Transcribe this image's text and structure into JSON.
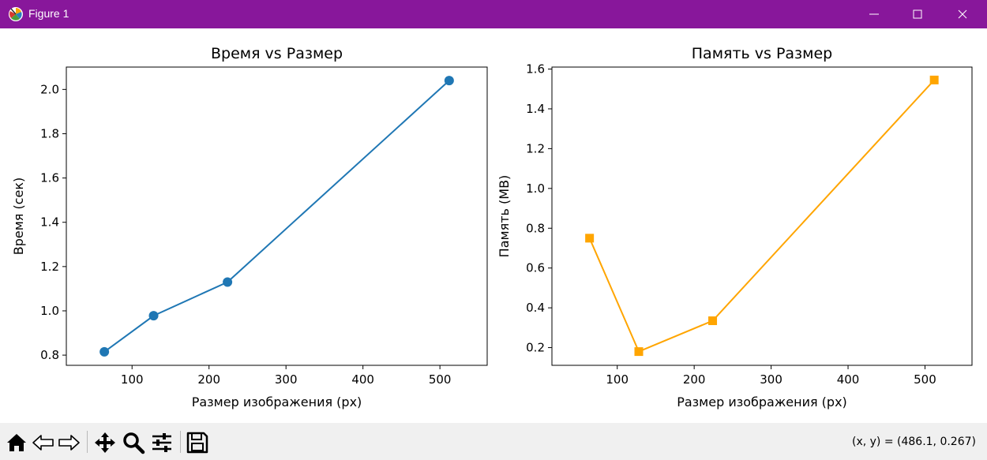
{
  "window": {
    "title": "Figure 1",
    "titlebar_color": "#88179b",
    "icons": [
      "matplotlib-icon",
      "minimize-icon",
      "maximize-icon",
      "close-icon"
    ]
  },
  "toolbar": {
    "tools": [
      "home-icon",
      "back-arrow-icon",
      "forward-arrow-icon",
      "pan-icon",
      "zoom-icon",
      "configure-subplots-icon",
      "save-icon"
    ],
    "coords": "(x, y) = (486.1, 0.267)"
  },
  "chart_data": [
    {
      "type": "line",
      "title": "Время vs Размер",
      "xlabel": "Размер изображения (px)",
      "ylabel": "Время (сек)",
      "x": [
        64,
        128,
        224,
        512
      ],
      "series": [
        {
          "values": [
            0.815,
            0.978,
            1.13,
            2.04
          ],
          "color": "#1f77b4",
          "marker": "circle"
        }
      ],
      "xlim": [
        14.6,
        561.4
      ],
      "ylim": [
        0.754,
        2.101
      ],
      "xticks": [
        100,
        200,
        300,
        400,
        500
      ],
      "xtick_labels": [
        "100",
        "200",
        "300",
        "400",
        "500"
      ],
      "yticks": [
        0.8,
        1.0,
        1.2,
        1.4,
        1.6,
        1.8,
        2.0
      ],
      "ytick_labels": [
        "0.8",
        "1.0",
        "1.2",
        "1.4",
        "1.6",
        "1.8",
        "2.0"
      ],
      "grid": false,
      "legend": "none"
    },
    {
      "type": "line",
      "title": "Память vs Размер",
      "xlabel": "Размер изображения (px)",
      "ylabel": "Память (MB)",
      "x": [
        64,
        128,
        224,
        512
      ],
      "series": [
        {
          "values": [
            0.75,
            0.18,
            0.335,
            1.545
          ],
          "color": "#ffa500",
          "marker": "square"
        }
      ],
      "xlim": [
        15.1,
        561.1
      ],
      "ylim": [
        0.111,
        1.61
      ],
      "xticks": [
        100,
        200,
        300,
        400,
        500
      ],
      "xtick_labels": [
        "100",
        "200",
        "300",
        "400",
        "500"
      ],
      "yticks": [
        0.2,
        0.4,
        0.6,
        0.8,
        1.0,
        1.2,
        1.4,
        1.6
      ],
      "ytick_labels": [
        "0.2",
        "0.4",
        "0.6",
        "0.8",
        "1.0",
        "1.2",
        "1.4",
        "1.6"
      ],
      "grid": false,
      "legend": "none"
    }
  ]
}
